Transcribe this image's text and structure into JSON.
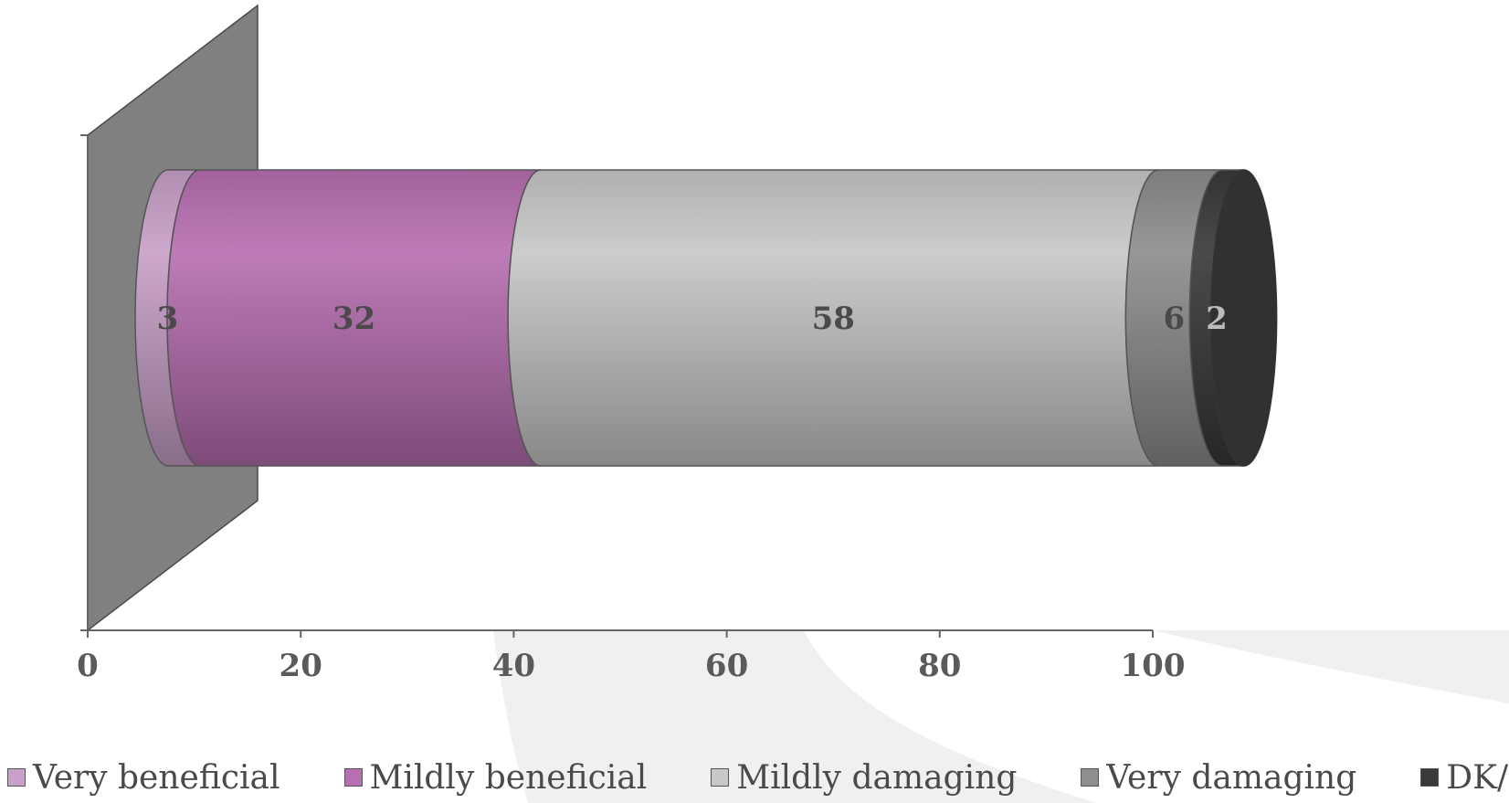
{
  "chart_data": {
    "type": "bar",
    "orientation": "horizontal",
    "stacked": true,
    "style": "3d-cylinder",
    "categories": [
      ""
    ],
    "series": [
      {
        "name": "Very beneficial",
        "values": [
          3
        ],
        "color": "#c9a0c9"
      },
      {
        "name": "Mildly beneficial",
        "values": [
          32
        ],
        "color": "#b86fb2"
      },
      {
        "name": "Mildly damaging",
        "values": [
          58
        ],
        "color": "#c8c8c8"
      },
      {
        "name": "Very damaging",
        "values": [
          6
        ],
        "color": "#8e8e8e"
      },
      {
        "name": "DK/ref",
        "values": [
          2
        ],
        "color": "#3a3a3a"
      }
    ],
    "data_labels": [
      "3",
      "32",
      "58",
      "6",
      "2"
    ],
    "x_ticks": [
      "0",
      "20",
      "40",
      "60",
      "80",
      "100"
    ],
    "xlim": [
      0,
      100
    ],
    "title": "",
    "xlabel": "",
    "ylabel": "",
    "grid": false,
    "legend_position": "bottom",
    "wall_color": "#808080",
    "axis_color": "#666666"
  }
}
